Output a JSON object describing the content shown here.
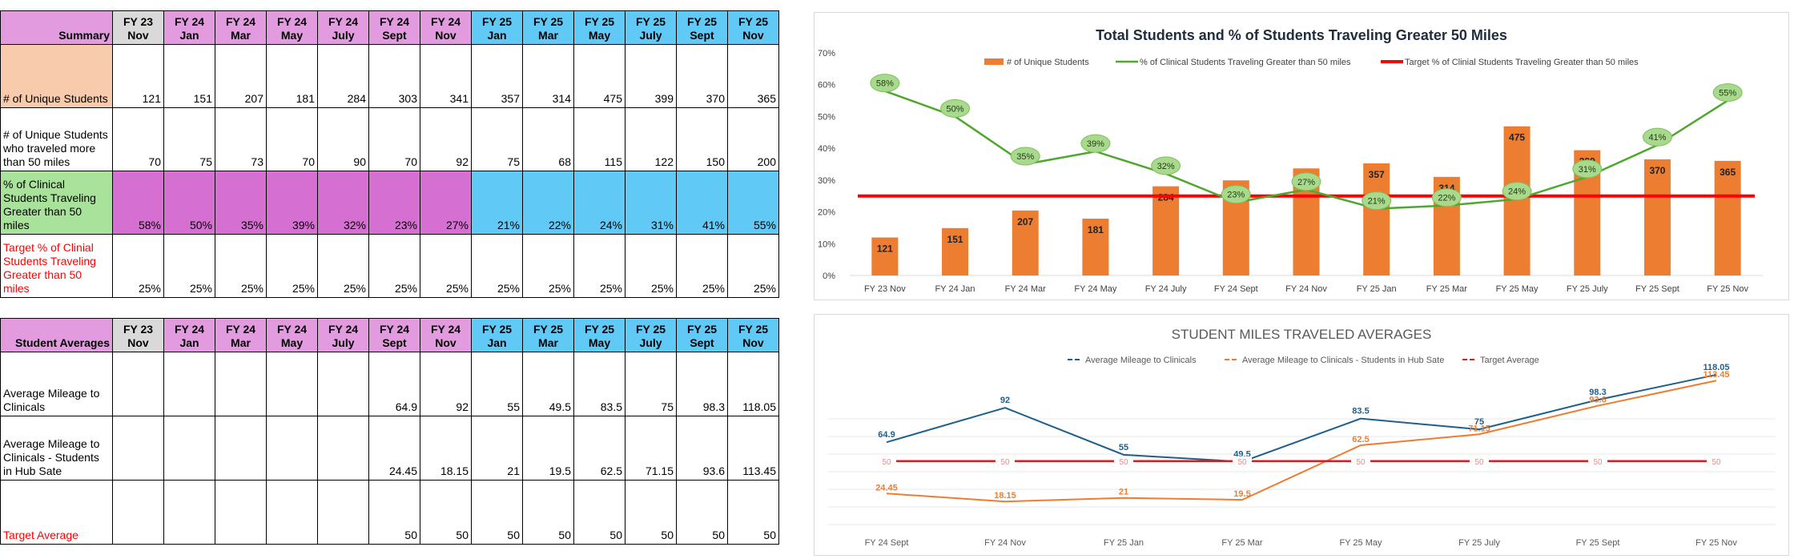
{
  "top_table": {
    "corner": "Summary",
    "columns": [
      {
        "l1": "FY 23",
        "l2": "Nov",
        "color": "grey"
      },
      {
        "l1": "FY 24",
        "l2": "Jan",
        "color": "pink"
      },
      {
        "l1": "FY 24",
        "l2": "Mar",
        "color": "pink"
      },
      {
        "l1": "FY 24",
        "l2": "May",
        "color": "pink"
      },
      {
        "l1": "FY 24",
        "l2": "July",
        "color": "pink"
      },
      {
        "l1": "FY 24",
        "l2": "Sept",
        "color": "pink"
      },
      {
        "l1": "FY 24",
        "l2": "Nov",
        "color": "pink"
      },
      {
        "l1": "FY 25",
        "l2": "Jan",
        "color": "blue"
      },
      {
        "l1": "FY 25",
        "l2": "Mar",
        "color": "blue"
      },
      {
        "l1": "FY 25",
        "l2": "May",
        "color": "blue"
      },
      {
        "l1": "FY 25",
        "l2": "July",
        "color": "blue"
      },
      {
        "l1": "FY 25",
        "l2": "Sept",
        "color": "blue"
      },
      {
        "l1": "FY 25",
        "l2": "Nov",
        "color": "blue"
      }
    ],
    "rows": [
      {
        "label": "# of Unique Students",
        "values": [
          "121",
          "151",
          "207",
          "181",
          "284",
          "303",
          "341",
          "357",
          "314",
          "475",
          "399",
          "370",
          "365"
        ],
        "style": "unique"
      },
      {
        "label": "# of Unique Students who traveled more than 50 miles",
        "values": [
          "70",
          "75",
          "73",
          "70",
          "90",
          "70",
          "92",
          "75",
          "68",
          "115",
          "122",
          "150",
          "200"
        ],
        "style": "plain"
      },
      {
        "label": "% of Clinical Students Traveling Greater than 50 miles",
        "values": [
          "58%",
          "50%",
          "35%",
          "39%",
          "32%",
          "23%",
          "27%",
          "21%",
          "22%",
          "24%",
          "31%",
          "41%",
          "55%"
        ],
        "style": "pct"
      },
      {
        "label": "Target % of Clinial Students Traveling Greater than 50 miles",
        "values": [
          "25%",
          "25%",
          "25%",
          "25%",
          "25%",
          "25%",
          "25%",
          "25%",
          "25%",
          "25%",
          "25%",
          "25%",
          "25%"
        ],
        "style": "target"
      }
    ]
  },
  "bottom_table": {
    "corner": "Student Averages",
    "rows": [
      {
        "label": "Average Mileage to Clinicals",
        "values": [
          "",
          "",
          "",
          "",
          "",
          "64.9",
          "92",
          "55",
          "49.5",
          "83.5",
          "75",
          "98.3",
          "118.05"
        ],
        "style": "plain"
      },
      {
        "label": "Average Mileage to Clinicals - Students in Hub Sate",
        "values": [
          "",
          "",
          "",
          "",
          "",
          "24.45",
          "18.15",
          "21",
          "19.5",
          "62.5",
          "71.15",
          "93.6",
          "113.45"
        ],
        "style": "plain"
      },
      {
        "label": "Target Average",
        "values": [
          "",
          "",
          "",
          "",
          "",
          "50",
          "50",
          "50",
          "50",
          "50",
          "50",
          "50",
          "50"
        ],
        "style": "target"
      }
    ]
  },
  "colors": {
    "bar": "#ed7d31",
    "pct_line": "#4ea72e",
    "target_line": "#ff0000",
    "mileage_line": "#1f5f8b",
    "hub_line": "#ed7d31",
    "target_avg": "#e31a1c"
  },
  "chart_data": [
    {
      "type": "bar",
      "title": "Total Students and % of Students Traveling Greater 50 Miles",
      "categories": [
        "FY 23 Nov",
        "FY 24 Jan",
        "FY 24 Mar",
        "FY 24 May",
        "FY 24 July",
        "FY 24 Sept",
        "FY 24 Nov",
        "FY 25 Jan",
        "FY 25 Mar",
        "FY 25 May",
        "FY 25 July",
        "FY 25 Sept",
        "FY 25 Nov"
      ],
      "yticks": [
        "0%",
        "10%",
        "20%",
        "30%",
        "40%",
        "50%",
        "60%",
        "70%"
      ],
      "ylim": [
        0,
        0.7
      ],
      "bar_max": 475,
      "bar_peak": 0.67,
      "legend": [
        "# of Unique Students",
        "% of Clinical Students Traveling Greater than 50 miles",
        "Target % of Clinial Students Traveling Greater than 50 miles"
      ],
      "legend_position": "top",
      "grid": false,
      "series": [
        {
          "name": "# of Unique Students",
          "kind": "bar",
          "values": [
            121,
            151,
            207,
            181,
            284,
            303,
            341,
            357,
            314,
            475,
            399,
            370,
            365
          ]
        },
        {
          "name": "% of Clinical Students Traveling Greater than 50 miles",
          "kind": "line",
          "values": [
            0.58,
            0.5,
            0.35,
            0.39,
            0.32,
            0.23,
            0.27,
            0.21,
            0.22,
            0.24,
            0.31,
            0.41,
            0.55
          ],
          "labels": [
            "58%",
            "50%",
            "35%",
            "39%",
            "32%",
            "23%",
            "27%",
            "21%",
            "22%",
            "24%",
            "31%",
            "41%",
            "55%"
          ]
        },
        {
          "name": "Target % of Clinial Students Traveling Greater than 50 miles",
          "kind": "line",
          "values": [
            0.25,
            0.25,
            0.25,
            0.25,
            0.25,
            0.25,
            0.25,
            0.25,
            0.25,
            0.25,
            0.25,
            0.25,
            0.25
          ]
        }
      ]
    },
    {
      "type": "line",
      "title": "STUDENT MILES TRAVELED AVERAGES",
      "categories": [
        "FY 24 Sept",
        "FY 24 Nov",
        "FY 25 Jan",
        "FY 25 Mar",
        "FY 25 May",
        "FY 25 July",
        "FY 25 Sept",
        "FY 25 Nov"
      ],
      "ylim": [
        0,
        130
      ],
      "legend_position": "top",
      "grid": true,
      "series": [
        {
          "name": "Average Mileage to Clinicals",
          "values": [
            64.9,
            92,
            55,
            49.5,
            83.5,
            75,
            98.3,
            118.05
          ]
        },
        {
          "name": "Average Mileage to Clinicals - Students in Hub Sate",
          "values": [
            24.45,
            18.15,
            21,
            19.5,
            62.5,
            71.15,
            93.6,
            113.45
          ]
        },
        {
          "name": "Target Average",
          "values": [
            50,
            50,
            50,
            50,
            50,
            50,
            50,
            50
          ]
        }
      ]
    }
  ]
}
